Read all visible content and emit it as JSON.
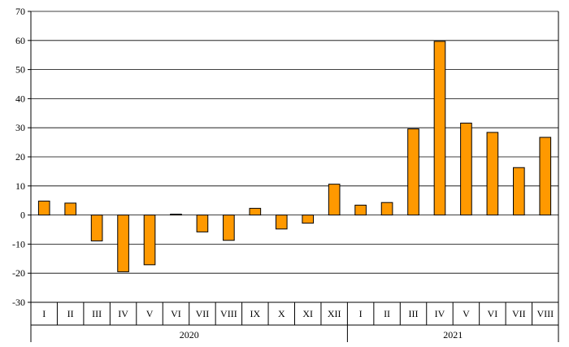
{
  "chart_data": {
    "type": "bar",
    "categories": [
      "I",
      "II",
      "III",
      "IV",
      "V",
      "VI",
      "VII",
      "VIII",
      "IX",
      "X",
      "XI",
      "XII",
      "I",
      "II",
      "III",
      "IV",
      "V",
      "VI",
      "VII",
      "VIII"
    ],
    "groups": [
      {
        "label": "2020",
        "count": 12
      },
      {
        "label": "2021",
        "count": 8
      }
    ],
    "series": [
      {
        "values": [
          4.8,
          4.1,
          -8.9,
          -19.5,
          -17.1,
          0.3,
          -5.8,
          -8.7,
          2.3,
          -4.8,
          -2.8,
          10.6,
          3.4,
          4.3,
          29.6,
          59.7,
          31.6,
          28.4,
          16.3,
          26.7
        ]
      }
    ],
    "ylim": [
      -30,
      70
    ],
    "yticks": [
      -30,
      -20,
      -10,
      0,
      10,
      20,
      30,
      40,
      50,
      60,
      70
    ],
    "grid": true,
    "bar_color": "#FF9900",
    "bar_edge_color": "#000000",
    "title": "",
    "xlabel": "",
    "ylabel": ""
  }
}
